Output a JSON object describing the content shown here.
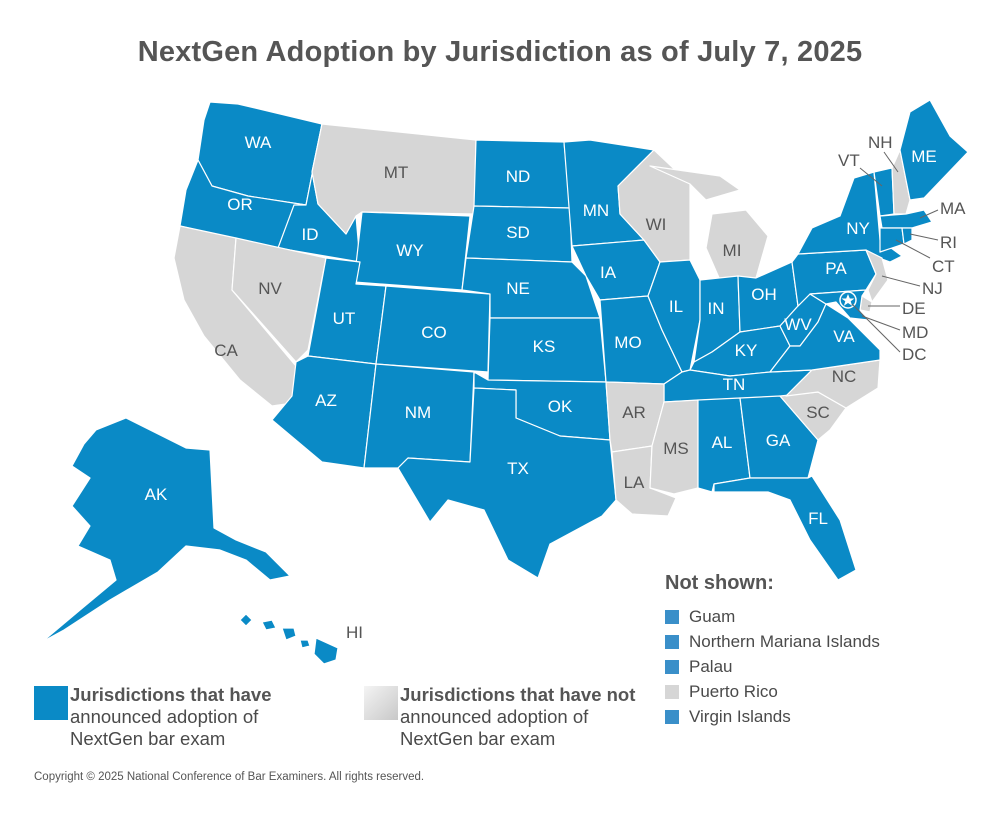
{
  "title": "NextGen Adoption by Jurisdiction as of July 7, 2025",
  "colors": {
    "adopted": "#0a8ac6",
    "not_adopted": "#d6d6d6",
    "not_shown_adopted": "#3a8fc9"
  },
  "states": {
    "WA": {
      "adopted": true
    },
    "OR": {
      "adopted": true
    },
    "ID": {
      "adopted": true
    },
    "MT": {
      "adopted": false
    },
    "WY": {
      "adopted": true
    },
    "ND": {
      "adopted": true
    },
    "SD": {
      "adopted": true
    },
    "MN": {
      "adopted": true
    },
    "WI": {
      "adopted": false
    },
    "MI": {
      "adopted": false
    },
    "CA": {
      "adopted": false
    },
    "NV": {
      "adopted": false
    },
    "UT": {
      "adopted": true
    },
    "CO": {
      "adopted": true
    },
    "NE": {
      "adopted": true
    },
    "IA": {
      "adopted": true
    },
    "IL": {
      "adopted": true
    },
    "IN": {
      "adopted": true
    },
    "OH": {
      "adopted": true
    },
    "PA": {
      "adopted": true
    },
    "NY": {
      "adopted": true
    },
    "AZ": {
      "adopted": true
    },
    "NM": {
      "adopted": true
    },
    "KS": {
      "adopted": true
    },
    "MO": {
      "adopted": true
    },
    "KY": {
      "adopted": true
    },
    "WV": {
      "adopted": true
    },
    "VA": {
      "adopted": true
    },
    "OK": {
      "adopted": true
    },
    "TX": {
      "adopted": true
    },
    "AR": {
      "adopted": false
    },
    "LA": {
      "adopted": false
    },
    "MS": {
      "adopted": false
    },
    "AL": {
      "adopted": true
    },
    "GA": {
      "adopted": true
    },
    "FL": {
      "adopted": true
    },
    "TN": {
      "adopted": true
    },
    "NC": {
      "adopted": false
    },
    "SC": {
      "adopted": false
    },
    "AK": {
      "adopted": true
    },
    "HI": {
      "adopted": true
    },
    "ME": {
      "adopted": true
    },
    "VT": {
      "adopted": true
    },
    "NH": {
      "adopted": false
    },
    "MA": {
      "adopted": true
    },
    "RI": {
      "adopted": true
    },
    "CT": {
      "adopted": true
    },
    "NJ": {
      "adopted": false
    },
    "DE": {
      "adopted": false
    },
    "MD": {
      "adopted": true
    },
    "DC": {
      "adopted": true
    }
  },
  "legend": {
    "adopted_bold": "Jurisdictions that have",
    "adopted_rest": [
      "announced adoption of",
      "NextGen bar exam"
    ],
    "not_adopted_bold": "Jurisdictions that have not",
    "not_adopted_rest": [
      "announced adoption of",
      "NextGen bar exam"
    ]
  },
  "not_shown": {
    "title": "Not shown:",
    "items": [
      {
        "label": "Guam",
        "adopted": true
      },
      {
        "label": "Northern Mariana Islands",
        "adopted": true
      },
      {
        "label": "Palau",
        "adopted": true
      },
      {
        "label": "Puerto Rico",
        "adopted": false
      },
      {
        "label": "Virgin Islands",
        "adopted": true
      }
    ]
  },
  "copyright": "Copyright © 2025 National Conference of Bar Examiners. All rights reserved."
}
